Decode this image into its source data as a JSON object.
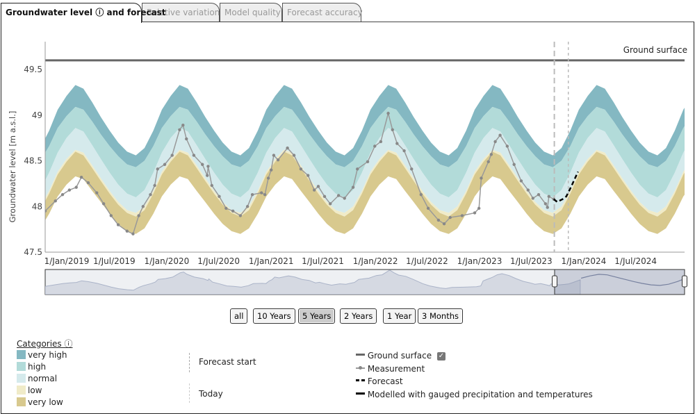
{
  "tabs": [
    {
      "label": "Groundwater level ⓘ and forecast",
      "active": true
    },
    {
      "label": "Relative variation",
      "active": false
    },
    {
      "label": "Model quality",
      "active": false
    },
    {
      "label": "Forecast accuracy",
      "active": false
    }
  ],
  "range_buttons": [
    {
      "label": "all",
      "selected": false
    },
    {
      "label": "10 Years",
      "selected": false
    },
    {
      "label": "5 Years",
      "selected": true
    },
    {
      "label": "2 Years",
      "selected": false
    },
    {
      "label": "1 Year",
      "selected": false
    },
    {
      "label": "3 Months",
      "selected": false
    }
  ],
  "legend": {
    "categories_title": "Categories ⓘ",
    "categories": [
      {
        "label": "very high",
        "color": "#84b8c2"
      },
      {
        "label": "high",
        "color": "#b2dbd9"
      },
      {
        "label": "normal",
        "color": "#d5eaec"
      },
      {
        "label": "low",
        "color": "#f0ebc8"
      },
      {
        "label": "very low",
        "color": "#d8c98e"
      }
    ],
    "forecast_start": "Forecast start",
    "today": "Today",
    "ground_surface": "Ground surface",
    "ground_surface_checked": true,
    "measurement": "Measurement",
    "forecast": "Forecast",
    "modelled": "Modelled with gauged precipitation and temperatures"
  },
  "chart_data": {
    "type": "area",
    "ylabel": "Groundwater level [m a.s.l.]",
    "ylim": [
      47.5,
      49.75
    ],
    "y_ticks": [
      "47.5",
      "48",
      "48.5",
      "49",
      "49.5"
    ],
    "x_range": [
      "2018-11-01",
      "2024-12-10"
    ],
    "x_ticks": [
      {
        "date": "2019-01-01",
        "label": "1/Jan/2019"
      },
      {
        "date": "2019-07-01",
        "label": "1/Jul/2019"
      },
      {
        "date": "2020-01-01",
        "label": "1/Jan/2020"
      },
      {
        "date": "2020-07-01",
        "label": "1/Jul/2020"
      },
      {
        "date": "2021-01-01",
        "label": "1/Jan/2021"
      },
      {
        "date": "2021-07-01",
        "label": "1/Jul/2021"
      },
      {
        "date": "2022-01-01",
        "label": "1/Jan/2022"
      },
      {
        "date": "2022-07-01",
        "label": "1/Jul/2022"
      },
      {
        "date": "2023-01-01",
        "label": "1/Jan/2023"
      },
      {
        "date": "2023-07-01",
        "label": "1/Jul/2023"
      },
      {
        "date": "2024-01-01",
        "label": "1/Jan/2024"
      },
      {
        "date": "2024-07-01",
        "label": "1/Jul/2024"
      }
    ],
    "ground_surface": {
      "label": "Ground surface",
      "value": 49.6
    },
    "forecast_start": "2023-09-20",
    "today": "2023-11-08",
    "category_bounds_by_month": {
      "months": [
        "Jan",
        "Feb",
        "Mar",
        "Apr",
        "May",
        "Jun",
        "Jul",
        "Aug",
        "Sep",
        "Oct",
        "Nov",
        "Dec"
      ],
      "very_high_top": [
        49.21,
        49.33,
        49.29,
        49.14,
        48.98,
        48.83,
        48.7,
        48.6,
        48.56,
        48.64,
        48.83,
        49.06
      ],
      "high_top": [
        48.99,
        49.09,
        49.06,
        48.93,
        48.79,
        48.66,
        48.55,
        48.46,
        48.43,
        48.5,
        48.66,
        48.86
      ],
      "normal_top": [
        48.75,
        48.86,
        48.82,
        48.67,
        48.52,
        48.37,
        48.24,
        48.14,
        48.1,
        48.18,
        48.37,
        48.59
      ],
      "low_top": [
        48.52,
        48.62,
        48.59,
        48.45,
        48.31,
        48.17,
        48.05,
        47.96,
        47.93,
        48.0,
        48.17,
        48.38
      ],
      "very_low_top": [
        48.49,
        48.6,
        48.56,
        48.42,
        48.28,
        48.14,
        48.02,
        47.93,
        47.89,
        47.96,
        48.14,
        48.35
      ],
      "very_low_bottom": [
        48.24,
        48.33,
        48.3,
        48.17,
        48.05,
        47.92,
        47.81,
        47.73,
        47.7,
        47.76,
        47.92,
        48.11
      ]
    },
    "series": [
      {
        "name": "Measurement",
        "color": "#999999",
        "points": [
          [
            "2018-11-01",
            47.95
          ],
          [
            "2018-12-07",
            48.06
          ],
          [
            "2019-01-01",
            48.13
          ],
          [
            "2019-01-25",
            48.18
          ],
          [
            "2019-02-18",
            48.21
          ],
          [
            "2019-03-08",
            48.32
          ],
          [
            "2019-04-01",
            48.26
          ],
          [
            "2019-05-01",
            48.15
          ],
          [
            "2019-05-25",
            48.03
          ],
          [
            "2019-06-20",
            47.9
          ],
          [
            "2019-07-15",
            47.8
          ],
          [
            "2019-08-15",
            47.73
          ],
          [
            "2019-09-05",
            47.7
          ],
          [
            "2019-09-25",
            47.9
          ],
          [
            "2019-10-10",
            48.0
          ],
          [
            "2019-11-05",
            48.13
          ],
          [
            "2019-11-20",
            48.23
          ],
          [
            "2019-11-30",
            48.41
          ],
          [
            "2019-12-25",
            48.46
          ],
          [
            "2020-01-20",
            48.56
          ],
          [
            "2020-02-15",
            48.84
          ],
          [
            "2020-02-27",
            48.89
          ],
          [
            "2020-03-10",
            48.74
          ],
          [
            "2020-04-05",
            48.56
          ],
          [
            "2020-05-05",
            48.46
          ],
          [
            "2020-05-22",
            48.34
          ],
          [
            "2020-05-25",
            48.44
          ],
          [
            "2020-06-07",
            48.23
          ],
          [
            "2020-07-03",
            48.11
          ],
          [
            "2020-07-27",
            47.98
          ],
          [
            "2020-08-20",
            47.95
          ],
          [
            "2020-09-15",
            47.9
          ],
          [
            "2020-10-10",
            48.0
          ],
          [
            "2020-10-27",
            48.13
          ],
          [
            "2020-11-28",
            48.15
          ],
          [
            "2020-12-10",
            48.13
          ],
          [
            "2020-12-22",
            48.31
          ],
          [
            "2021-01-01",
            48.4
          ],
          [
            "2021-01-10",
            48.56
          ],
          [
            "2021-01-25",
            48.51
          ],
          [
            "2021-02-27",
            48.64
          ],
          [
            "2021-03-22",
            48.56
          ],
          [
            "2021-04-15",
            48.41
          ],
          [
            "2021-05-10",
            48.34
          ],
          [
            "2021-06-01",
            48.18
          ],
          [
            "2021-06-15",
            48.22
          ],
          [
            "2021-07-07",
            48.11
          ],
          [
            "2021-07-27",
            48.03
          ],
          [
            "2021-08-25",
            48.12
          ],
          [
            "2021-09-15",
            48.09
          ],
          [
            "2021-10-15",
            48.21
          ],
          [
            "2021-10-30",
            48.41
          ],
          [
            "2021-12-05",
            48.49
          ],
          [
            "2021-12-30",
            48.66
          ],
          [
            "2022-01-20",
            48.71
          ],
          [
            "2022-02-15",
            49.02
          ],
          [
            "2022-03-02",
            48.84
          ],
          [
            "2022-03-18",
            48.69
          ],
          [
            "2022-04-12",
            48.61
          ],
          [
            "2022-05-08",
            48.41
          ],
          [
            "2022-06-10",
            48.13
          ],
          [
            "2022-07-05",
            47.98
          ],
          [
            "2022-08-10",
            47.85
          ],
          [
            "2022-08-30",
            47.81
          ],
          [
            "2022-09-20",
            47.88
          ],
          [
            "2022-11-01",
            47.9
          ],
          [
            "2022-12-15",
            47.93
          ],
          [
            "2022-12-30",
            47.98
          ],
          [
            "2023-01-07",
            48.31
          ],
          [
            "2023-02-01",
            48.49
          ],
          [
            "2023-02-11",
            48.57
          ],
          [
            "2023-02-25",
            48.71
          ],
          [
            "2023-03-14",
            48.78
          ],
          [
            "2023-04-08",
            48.66
          ],
          [
            "2023-05-02",
            48.46
          ],
          [
            "2023-05-27",
            48.28
          ],
          [
            "2023-06-20",
            48.18
          ],
          [
            "2023-07-07",
            48.09
          ],
          [
            "2023-07-27",
            48.13
          ],
          [
            "2023-08-20",
            48.03
          ],
          [
            "2023-08-27",
            47.99
          ],
          [
            "2023-09-01",
            48.11
          ],
          [
            "2023-09-18",
            48.08
          ]
        ]
      },
      {
        "name": "Forecast",
        "color": "#000000",
        "points": [
          [
            "2023-09-18",
            48.08
          ],
          [
            "2023-09-30",
            48.05
          ],
          [
            "2023-10-19",
            48.08
          ],
          [
            "2023-11-01",
            48.11
          ],
          [
            "2023-11-17",
            48.21
          ],
          [
            "2023-12-12",
            48.38
          ]
        ]
      }
    ]
  }
}
